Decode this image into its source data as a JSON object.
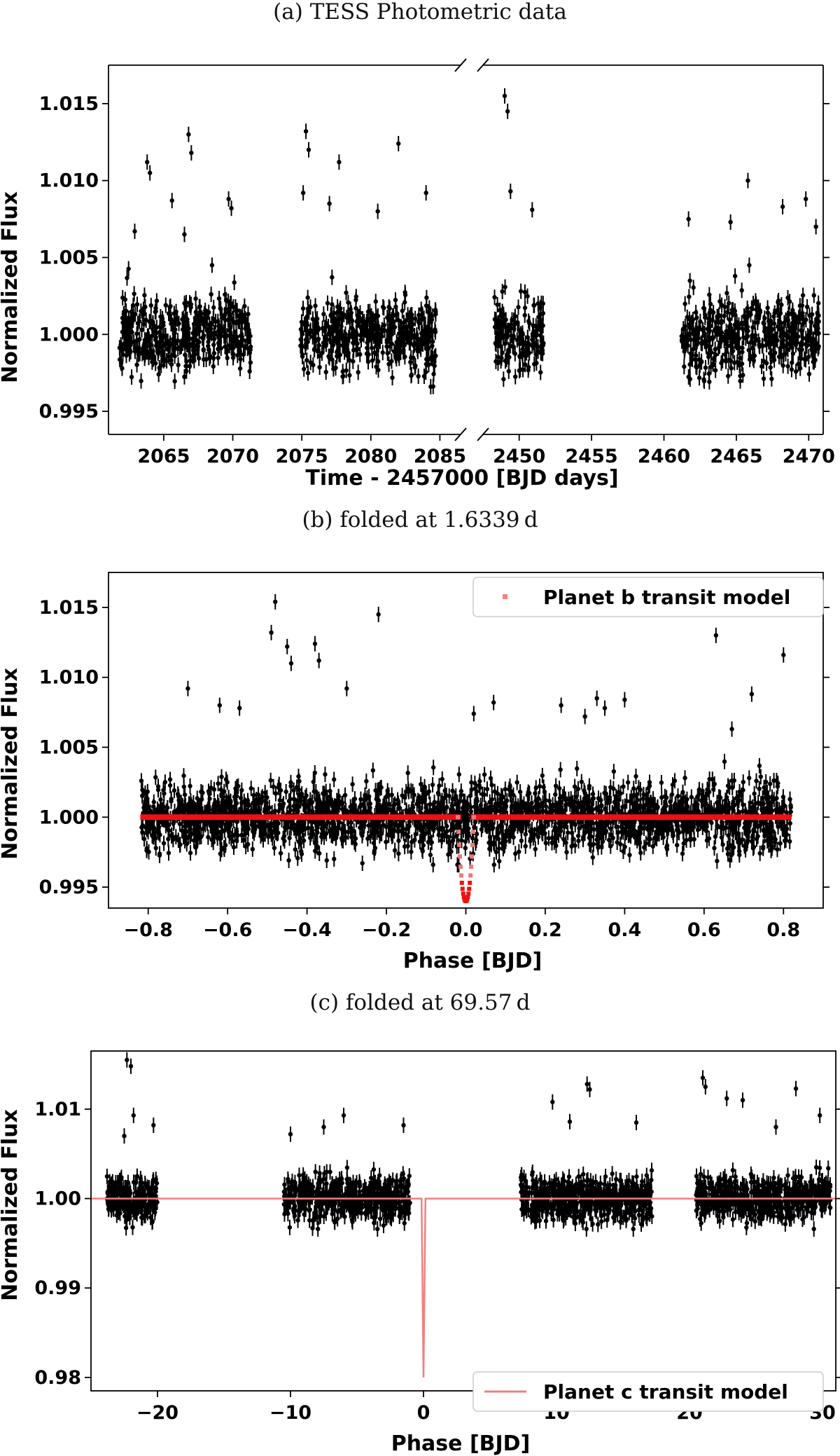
{
  "chart_data": [
    {
      "type": "scatter",
      "caption": "(a) TESS Photometric data",
      "xlabel": "Time - 2457000 [BJD days]",
      "ylabel": "Normalized Flux",
      "ylim": [
        0.9935,
        1.0175
      ],
      "broken_x_axis": true,
      "x_segments": [
        {
          "xlim": [
            2061,
            2086.5
          ],
          "ticks": [
            2065,
            2070,
            2075,
            2080,
            2085
          ],
          "tick_labels": [
            "2065",
            "2070",
            "2075",
            "2080",
            "2085"
          ]
        },
        {
          "xlim": [
            2447.5,
            2471
          ],
          "ticks": [
            2450,
            2455,
            2460,
            2465,
            2470
          ],
          "tick_labels": [
            "2450",
            "2455",
            "2460",
            "2465",
            "2470"
          ]
        }
      ],
      "yticks": [
        0.995,
        1.0,
        1.005,
        1.01,
        1.015
      ],
      "ytick_labels": [
        "0.995",
        "1.000",
        "1.005",
        "1.010",
        "1.015"
      ],
      "series": [
        {
          "marker_color": "#000000",
          "observed_windows": [
            [
              2061.8,
              2071.3
            ],
            [
              2074.9,
              2084.7
            ],
            [
              2448.3,
              2451.7
            ],
            [
              2461.2,
              2470.7
            ]
          ],
          "baseline": 1.0,
          "scatter_sigma": 0.0012,
          "notable_points": [
            [
              2062.9,
              1.0067
            ],
            [
              2063.8,
              1.0112
            ],
            [
              2064.0,
              1.0105
            ],
            [
              2065.6,
              1.0087
            ],
            [
              2066.5,
              1.0065
            ],
            [
              2066.8,
              1.013
            ],
            [
              2067.0,
              1.0118
            ],
            [
              2068.5,
              1.0045
            ],
            [
              2069.7,
              1.0088
            ],
            [
              2069.9,
              1.0082
            ],
            [
              2075.3,
              1.0132
            ],
            [
              2075.5,
              1.012
            ],
            [
              2075.1,
              1.0092
            ],
            [
              2077.0,
              1.0085
            ],
            [
              2077.7,
              1.0112
            ],
            [
              2080.5,
              1.008
            ],
            [
              2082.0,
              1.0124
            ],
            [
              2084.0,
              1.0092
            ],
            [
              2449.0,
              1.0155
            ],
            [
              2449.2,
              1.0145
            ],
            [
              2449.4,
              1.0093
            ],
            [
              2450.9,
              1.0081
            ],
            [
              2461.7,
              1.0075
            ],
            [
              2464.6,
              1.0073
            ],
            [
              2465.8,
              1.01
            ],
            [
              2468.2,
              1.0083
            ],
            [
              2469.8,
              1.0088
            ],
            [
              2470.5,
              1.007
            ]
          ]
        }
      ]
    },
    {
      "type": "scatter",
      "caption": "(b) folded at 1.6339 d",
      "xlabel": "Phase [BJD]",
      "ylabel": "Normalized Flux",
      "xlim": [
        -0.9,
        0.9
      ],
      "ylim": [
        0.9935,
        1.0175
      ],
      "xticks": [
        -0.8,
        -0.6,
        -0.4,
        -0.2,
        0.0,
        0.2,
        0.4,
        0.6,
        0.8
      ],
      "xtick_labels": [
        "−0.8",
        "−0.6",
        "−0.4",
        "−0.2",
        "0.0",
        "0.2",
        "0.4",
        "0.6",
        "0.8"
      ],
      "yticks": [
        0.995,
        1.0,
        1.005,
        1.01,
        1.015
      ],
      "ytick_labels": [
        "0.995",
        "1.000",
        "1.005",
        "1.010",
        "1.015"
      ],
      "legend": {
        "entries": [
          "Planet b transit model"
        ],
        "placement": "top-right"
      },
      "series": [
        {
          "marker_color": "#000000",
          "x_range": [
            -0.82,
            0.82
          ],
          "baseline": 1.0,
          "scatter_sigma": 0.0012,
          "notable_points": [
            [
              -0.49,
              1.0132
            ],
            [
              -0.48,
              1.0154
            ],
            [
              -0.45,
              1.0122
            ],
            [
              -0.44,
              1.011
            ],
            [
              -0.38,
              1.0124
            ],
            [
              -0.37,
              1.0112
            ],
            [
              -0.22,
              1.0145
            ],
            [
              -0.7,
              1.0092
            ],
            [
              -0.62,
              1.008
            ],
            [
              -0.57,
              1.0078
            ],
            [
              0.02,
              1.0074
            ],
            [
              0.07,
              1.0082
            ],
            [
              0.3,
              1.0072
            ],
            [
              0.33,
              1.0085
            ],
            [
              0.4,
              1.0084
            ],
            [
              0.63,
              1.013
            ],
            [
              0.67,
              1.0063
            ],
            [
              0.72,
              1.0088
            ],
            [
              0.8,
              1.0116
            ],
            [
              -0.3,
              1.0092
            ],
            [
              0.24,
              1.008
            ],
            [
              0.35,
              1.0078
            ]
          ]
        },
        {
          "name": "Planet b transit model",
          "model_color": "#ee1111",
          "baseline": 1.0,
          "transit_center": 0.0,
          "transit_half_width": 0.02,
          "transit_depth": 0.006
        }
      ]
    },
    {
      "type": "scatter",
      "caption": "(c) folded at 69.57 d",
      "xlabel": "Phase [BJD]",
      "ylabel": "Normalized Flux",
      "xlim": [
        -25,
        31
      ],
      "ylim": [
        0.9785,
        1.0165
      ],
      "xticks": [
        -20,
        -10,
        0,
        10,
        20,
        30
      ],
      "xtick_labels": [
        "−20",
        "−10",
        "0",
        "10",
        "20",
        "30"
      ],
      "yticks": [
        0.98,
        0.99,
        1.0,
        1.01
      ],
      "ytick_labels": [
        "0.98",
        "0.99",
        "1.00",
        "1.01"
      ],
      "legend": {
        "entries": [
          "Planet c transit model"
        ],
        "placement": "bottom-right"
      },
      "series": [
        {
          "marker_color": "#000000",
          "observed_windows": [
            [
              -23.8,
              -20.0
            ],
            [
              -10.5,
              -1.0
            ],
            [
              7.3,
              17.2
            ],
            [
              20.5,
              30.6
            ]
          ],
          "baseline": 1.0,
          "scatter_sigma": 0.0012,
          "notable_points": [
            [
              -22.3,
              1.0155
            ],
            [
              -22.0,
              1.0148
            ],
            [
              -21.8,
              1.0093
            ],
            [
              -22.5,
              1.007
            ],
            [
              -20.3,
              1.0082
            ],
            [
              -10.0,
              1.0072
            ],
            [
              -7.5,
              1.008
            ],
            [
              -6.0,
              1.0093
            ],
            [
              -1.5,
              1.0082
            ],
            [
              9.7,
              1.0108
            ],
            [
              11.0,
              1.0086
            ],
            [
              12.3,
              1.0128
            ],
            [
              12.5,
              1.0122
            ],
            [
              16.0,
              1.0085
            ],
            [
              21.0,
              1.0135
            ],
            [
              21.2,
              1.0125
            ],
            [
              22.8,
              1.0112
            ],
            [
              28.0,
              1.0123
            ],
            [
              29.8,
              1.0093
            ],
            [
              24.0,
              1.011
            ],
            [
              26.5,
              1.008
            ]
          ]
        },
        {
          "name": "Planet c transit model",
          "model_color": "#f08080",
          "baseline": 1.0,
          "transit_center": 0.0,
          "transit_half_width": 0.15,
          "transit_depth": 0.02
        }
      ]
    }
  ]
}
